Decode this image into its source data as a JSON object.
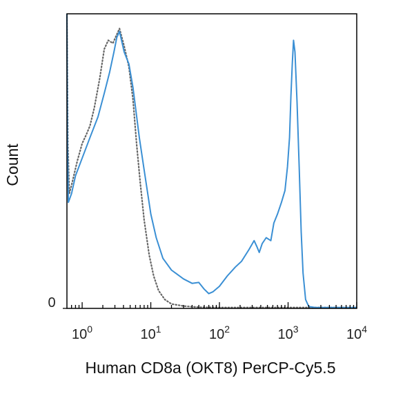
{
  "chart_data": {
    "type": "line",
    "xlabel": "Human CD8a (OKT8) PerCP-Cy5.5",
    "ylabel": "Count",
    "x_scale": "log",
    "xlim": [
      0.6,
      10000
    ],
    "ylim": [
      0,
      100
    ],
    "x_ticks": [
      {
        "value": 1,
        "base": "10",
        "exp": "0"
      },
      {
        "value": 10,
        "base": "10",
        "exp": "1"
      },
      {
        "value": 100,
        "base": "10",
        "exp": "2"
      },
      {
        "value": 1000,
        "base": "10",
        "exp": "3"
      },
      {
        "value": 10000,
        "base": "10",
        "exp": "4"
      }
    ],
    "y_ticks": [
      {
        "value": 0,
        "label": "0"
      }
    ],
    "colors": {
      "stained": "#3a8fd4",
      "control": "#666666",
      "axis": "#000000"
    },
    "series": [
      {
        "style": "solid",
        "color": "#3a8fd4",
        "points": [
          [
            0.6,
            100
          ],
          [
            0.61,
            55
          ],
          [
            0.63,
            36
          ],
          [
            0.7,
            39
          ],
          [
            0.8,
            45
          ],
          [
            1.0,
            51
          ],
          [
            1.3,
            58
          ],
          [
            1.7,
            65
          ],
          [
            2.1,
            73
          ],
          [
            2.5,
            80
          ],
          [
            2.9,
            87
          ],
          [
            3.2,
            92
          ],
          [
            3.5,
            94
          ],
          [
            4.1,
            87
          ],
          [
            4.8,
            83
          ],
          [
            5.5,
            75
          ],
          [
            6.0,
            68
          ],
          [
            6.8,
            58
          ],
          [
            8.0,
            47
          ],
          [
            10,
            32
          ],
          [
            12,
            24
          ],
          [
            15,
            17
          ],
          [
            20,
            13
          ],
          [
            30,
            10
          ],
          [
            40,
            8.5
          ],
          [
            50,
            8.8
          ],
          [
            60,
            6.5
          ],
          [
            70,
            5.0
          ],
          [
            80,
            5.6
          ],
          [
            100,
            7.5
          ],
          [
            130,
            11
          ],
          [
            170,
            14
          ],
          [
            210,
            16
          ],
          [
            270,
            20
          ],
          [
            320,
            23
          ],
          [
            350,
            21
          ],
          [
            380,
            19
          ],
          [
            420,
            22
          ],
          [
            480,
            24
          ],
          [
            560,
            23
          ],
          [
            620,
            29
          ],
          [
            700,
            32
          ],
          [
            800,
            36
          ],
          [
            900,
            40
          ],
          [
            980,
            48
          ],
          [
            1050,
            58
          ],
          [
            1100,
            72
          ],
          [
            1150,
            83
          ],
          [
            1200,
            91
          ],
          [
            1260,
            87
          ],
          [
            1350,
            70
          ],
          [
            1450,
            48
          ],
          [
            1550,
            26
          ],
          [
            1650,
            12
          ],
          [
            1800,
            3
          ],
          [
            2000,
            0.6
          ],
          [
            2500,
            0.3
          ],
          [
            5000,
            0.3
          ],
          [
            10000,
            0.3
          ]
        ]
      },
      {
        "style": "dotted",
        "color": "#666666",
        "points": [
          [
            0.6,
            99
          ],
          [
            0.62,
            56
          ],
          [
            0.65,
            39
          ],
          [
            0.72,
            43
          ],
          [
            0.85,
            50
          ],
          [
            1.0,
            56
          ],
          [
            1.15,
            59
          ],
          [
            1.3,
            62
          ],
          [
            1.5,
            68
          ],
          [
            1.8,
            78
          ],
          [
            2.1,
            88
          ],
          [
            2.4,
            91
          ],
          [
            2.8,
            90
          ],
          [
            3.2,
            93
          ],
          [
            3.5,
            95
          ],
          [
            4.1,
            89
          ],
          [
            4.8,
            82
          ],
          [
            5.5,
            71
          ],
          [
            6.2,
            56
          ],
          [
            7.0,
            43
          ],
          [
            8.0,
            30
          ],
          [
            9.5,
            18
          ],
          [
            11,
            11
          ],
          [
            13,
            6
          ],
          [
            16,
            3
          ],
          [
            20,
            1.5
          ],
          [
            30,
            0.8
          ],
          [
            50,
            0.4
          ],
          [
            100,
            0.3
          ],
          [
            10000,
            0.3
          ]
        ]
      }
    ]
  }
}
